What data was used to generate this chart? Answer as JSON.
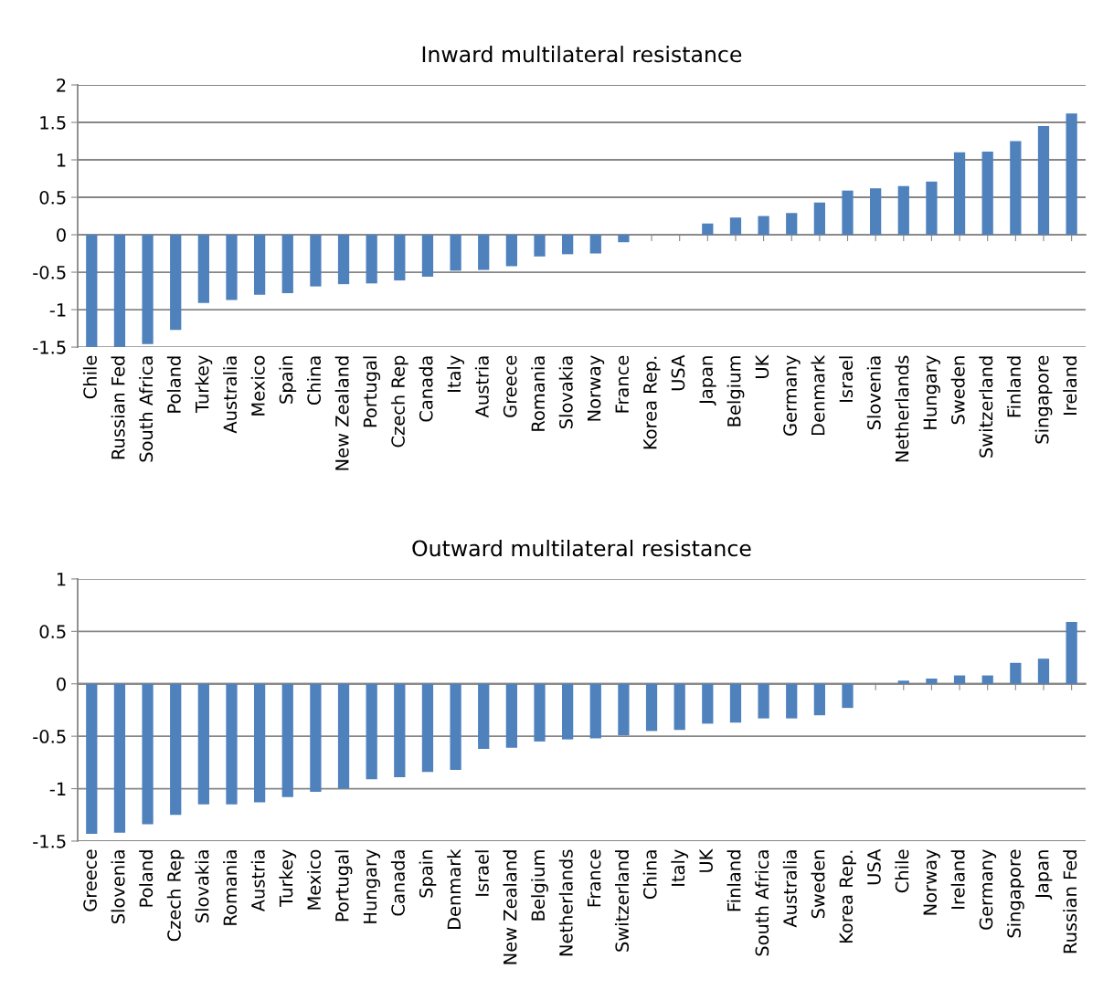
{
  "chart_data": [
    {
      "type": "bar",
      "title": "Inward multilateral resistance",
      "categories": [
        "Chile",
        "Russian Fed",
        "South Africa",
        "Poland",
        "Turkey",
        "Australia",
        "Mexico",
        "Spain",
        "China",
        "New Zealand",
        "Portugal",
        "Czech Rep",
        "Canada",
        "Italy",
        "Austria",
        "Greece",
        "Romania",
        "Slovakia",
        "Norway",
        "France",
        "Korea Rep.",
        "USA",
        "Japan",
        "Belgium",
        "UK",
        "Germany",
        "Denmark",
        "Israel",
        "Slovenia",
        "Netherlands",
        "Hungary",
        "Sweden",
        "Switzerland",
        "Finland",
        "Singapore",
        "Ireland"
      ],
      "values": [
        -1.5,
        -1.5,
        -1.46,
        -1.27,
        -0.91,
        -0.87,
        -0.8,
        -0.78,
        -0.69,
        -0.66,
        -0.65,
        -0.61,
        -0.56,
        -0.48,
        -0.47,
        -0.42,
        -0.29,
        -0.26,
        -0.25,
        -0.1,
        0,
        0,
        0.15,
        0.23,
        0.25,
        0.29,
        0.43,
        0.59,
        0.62,
        0.65,
        0.71,
        1.1,
        1.11,
        1.25,
        1.45,
        1.62
      ],
      "color": "#4f81bd",
      "ylim": [
        -1.5,
        2
      ],
      "yticks": [
        -1.5,
        -1,
        -0.5,
        0,
        0.5,
        1,
        1.5,
        2
      ],
      "grid": "y",
      "legend": false
    },
    {
      "type": "bar",
      "title": "Outward multilateral resistance",
      "categories": [
        "Greece",
        "Slovenia",
        "Poland",
        "Czech Rep",
        "Slovakia",
        "Romania",
        "Austria",
        "Turkey",
        "Mexico",
        "Portugal",
        "Hungary",
        "Canada",
        "Spain",
        "Denmark",
        "Israel",
        "New Zealand",
        "Belgium",
        "Netherlands",
        "France",
        "Switzerland",
        "China",
        "Italy",
        "UK",
        "Finland",
        "South Africa",
        "Australia",
        "Sweden",
        "Korea Rep.",
        "USA",
        "Chile",
        "Norway",
        "Ireland",
        "Germany",
        "Singapore",
        "Japan",
        "Russian Fed"
      ],
      "values": [
        -1.43,
        -1.42,
        -1.34,
        -1.25,
        -1.15,
        -1.15,
        -1.13,
        -1.08,
        -1.03,
        -1.0,
        -0.91,
        -0.89,
        -0.84,
        -0.82,
        -0.62,
        -0.61,
        -0.55,
        -0.53,
        -0.52,
        -0.49,
        -0.45,
        -0.44,
        -0.38,
        -0.37,
        -0.33,
        -0.33,
        -0.3,
        -0.23,
        0,
        0.03,
        0.05,
        0.08,
        0.08,
        0.2,
        0.24,
        0.59
      ],
      "color": "#4f81bd",
      "ylim": [
        -1.5,
        1
      ],
      "yticks": [
        -1.5,
        -1,
        -0.5,
        0,
        0.5,
        1
      ],
      "grid": "y",
      "legend": false
    }
  ]
}
